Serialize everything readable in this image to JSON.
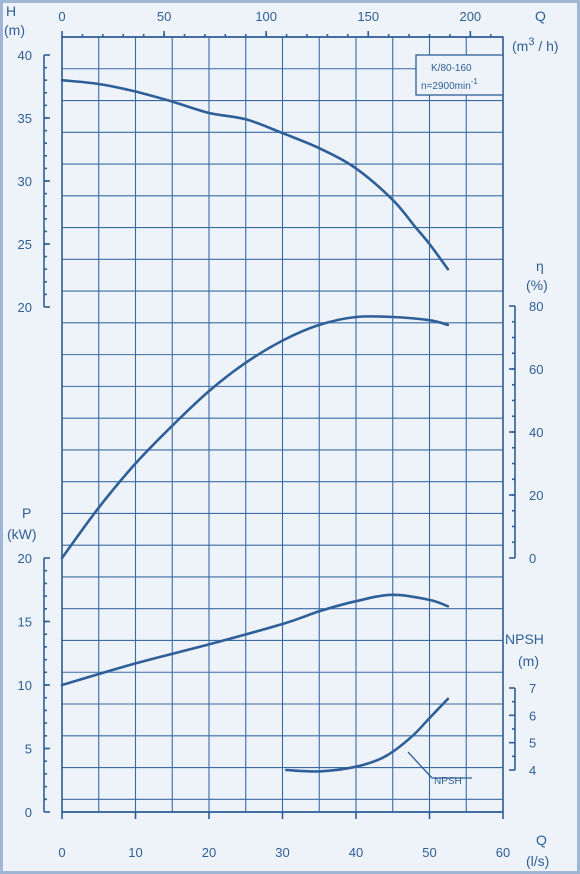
{
  "colors": {
    "line": "#2e5f99",
    "background": "#eef3f9",
    "frame": "#9fb7d4"
  },
  "chart_data": {
    "type": "line",
    "title": "",
    "annotation_model": "K/80-160",
    "annotation_speed": "n=2900min",
    "annotation_speed_exp": "-1",
    "npsh_callout": "NPSH",
    "top_axis": {
      "label": "Q",
      "unit_pre": "(m",
      "unit_sup": "3",
      "unit_post": " / h)",
      "ticks": [
        "0",
        "50",
        "100",
        "150",
        "200"
      ],
      "range": [
        0,
        216
      ]
    },
    "bottom_axis": {
      "label": "Q",
      "unit": "(l/s)",
      "ticks": [
        "0",
        "10",
        "20",
        "30",
        "40",
        "50",
        "60"
      ],
      "range": [
        0,
        60
      ]
    },
    "head_axis": {
      "label": "H",
      "unit": "(m)",
      "ticks": [
        "20",
        "25",
        "30",
        "35",
        "40"
      ],
      "range": [
        20,
        40
      ]
    },
    "efficiency_axis": {
      "label": "η",
      "unit": "(%)",
      "ticks": [
        "0",
        "20",
        "40",
        "60",
        "80"
      ],
      "range": [
        0,
        80
      ]
    },
    "power_axis": {
      "label": "P",
      "unit": "(kW)",
      "ticks": [
        "0",
        "5",
        "10",
        "15",
        "20"
      ],
      "range": [
        0,
        20
      ]
    },
    "npsh_axis": {
      "label": "NPSH",
      "unit": "(m)",
      "ticks": [
        "4",
        "5",
        "6",
        "7"
      ],
      "range": [
        4,
        7
      ]
    },
    "grid": true,
    "series": [
      {
        "axis": "head",
        "unit": "m",
        "x": [
          0,
          5,
          10,
          15,
          20,
          25,
          30,
          35,
          40,
          45,
          48,
          50,
          52.5
        ],
        "y": [
          38,
          37.7,
          37.1,
          36.3,
          35.4,
          34.9,
          33.8,
          32.6,
          31.0,
          28.5,
          26.4,
          25.0,
          23.0
        ]
      },
      {
        "axis": "efficiency",
        "unit": "%",
        "x": [
          0,
          5,
          10,
          15,
          20,
          25,
          30,
          35,
          40,
          45,
          50,
          52.5
        ],
        "y": [
          0,
          16,
          30,
          42,
          53,
          62,
          69,
          74,
          76.5,
          76.5,
          75.5,
          74
        ]
      },
      {
        "axis": "power",
        "unit": "kW",
        "x": [
          0,
          10,
          20,
          30,
          35,
          40,
          45,
          50,
          52.5
        ],
        "y": [
          10,
          11.7,
          13.2,
          14.8,
          15.8,
          16.6,
          17.1,
          16.7,
          16.2
        ]
      },
      {
        "axis": "npsh",
        "unit": "m",
        "x": [
          30.5,
          35,
          40,
          44,
          47.5,
          50,
          52.5
        ],
        "y": [
          4.0,
          3.95,
          4.12,
          4.5,
          5.2,
          5.9,
          6.6
        ]
      }
    ]
  }
}
